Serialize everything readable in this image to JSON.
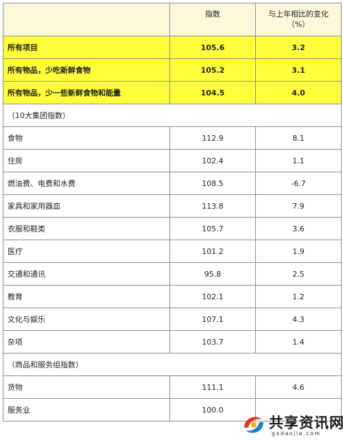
{
  "table": {
    "header": {
      "col1": "",
      "col2": "指数",
      "col3_line1": "与上年相比的变化",
      "col3_line2": "（%）"
    },
    "highlight_rows": [
      {
        "label": "所有项目",
        "index": "105.6",
        "change": "3.2"
      },
      {
        "label": "所有物品，少吃新鲜食物",
        "index": "105.2",
        "change": "3.1"
      },
      {
        "label": "所有物品，少一些新鲜食物和能量",
        "index": "104.5",
        "change": "4.0"
      }
    ],
    "section1_title": "（10大集团指数）",
    "group_rows": [
      {
        "label": "食物",
        "index": "112.9",
        "change": "8.1"
      },
      {
        "label": "住房",
        "index": "102.4",
        "change": "1.1"
      },
      {
        "label": "燃油费、电费和水费",
        "index": "108.5",
        "change": "-6.7"
      },
      {
        "label": "家具和家用器皿",
        "index": "113.8",
        "change": "7.9"
      },
      {
        "label": "衣服和鞋类",
        "index": "105.7",
        "change": "3.6"
      },
      {
        "label": "医疗",
        "index": "101.2",
        "change": "1.9"
      },
      {
        "label": "交通和通讯",
        "index": "95.8",
        "change": "2.5"
      },
      {
        "label": "教育",
        "index": "102.1",
        "change": "1.2"
      },
      {
        "label": "文化与娱乐",
        "index": "107.1",
        "change": "4.3"
      },
      {
        "label": "杂项",
        "index": "103.7",
        "change": "1.4"
      }
    ],
    "section2_title": "（商品和服务组指数）",
    "goods_rows": [
      {
        "label": "货物",
        "index": "111.1",
        "change": "4.6"
      },
      {
        "label": "服务业",
        "index": "100.0",
        "change": ""
      }
    ]
  },
  "watermark": {
    "title": "共享资讯网",
    "url": "gxdaojia.com"
  },
  "colors": {
    "header_bg": "#fdf8dc",
    "highlight_bg": "#ffff3b",
    "border": "#8a8a8a"
  }
}
